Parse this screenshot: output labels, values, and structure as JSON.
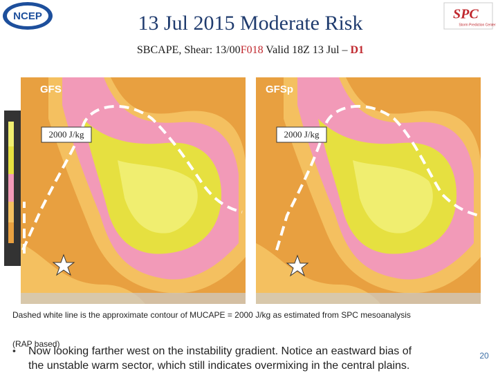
{
  "header": {
    "title": "13 Jul 2015 Moderate Risk",
    "subtitle_parts": [
      "SBCAPE, Shear: 13/00",
      "F018",
      " Valid 18Z 13 Jul – ",
      "D1"
    ]
  },
  "logos": {
    "left": "NCEP",
    "right": "Storm Prediction Center"
  },
  "panels": [
    {
      "label": "GFS",
      "contour_label": "2000 J/kg"
    },
    {
      "label": "GFSp",
      "contour_label": "2000 J/kg"
    }
  ],
  "caption": [
    "Dashed white line is the approximate contour of MUCAPE = 2000 J/kg as estimated from SPC mesoanalysis",
    "(RAP based)"
  ],
  "bullet_lines": [
    "Now looking farther west on the instability gradient.  Notice an eastward bias of",
    "the unstable warm sector, which still indicates overmixing in the central plains."
  ],
  "page_number": "20"
}
